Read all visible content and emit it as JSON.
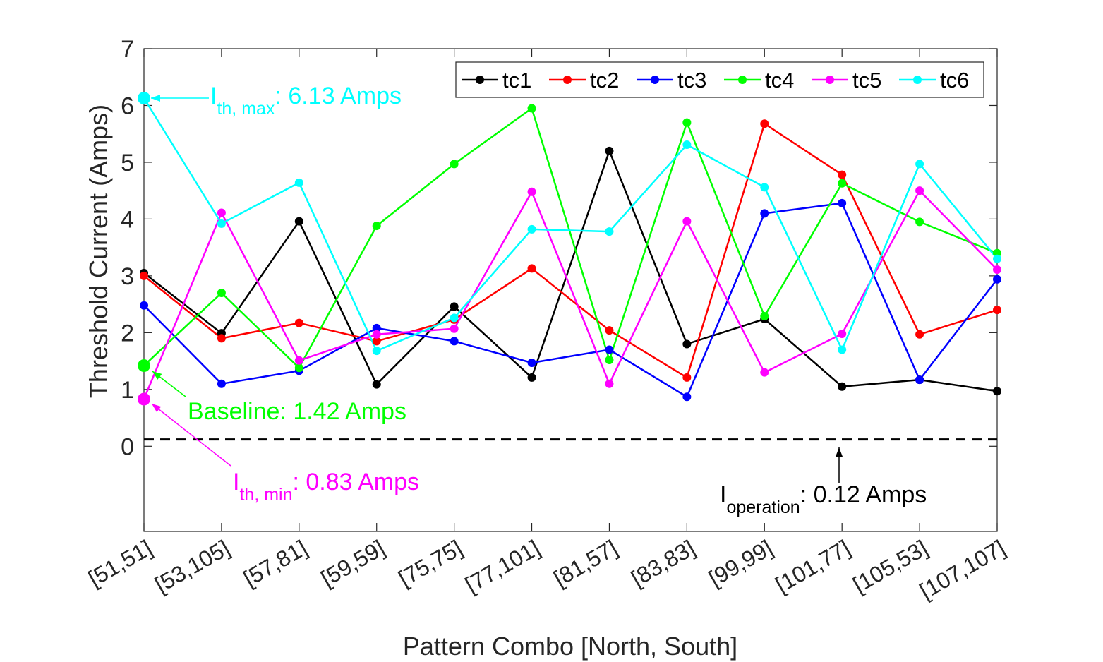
{
  "chart_data": {
    "type": "line",
    "title": "",
    "xlabel": "Pattern Combo [North, South]",
    "ylabel": "Threshold Current (Amps)",
    "categories": [
      "[51,51]",
      "[53,105]",
      "[57,81]",
      "[59,59]",
      "[75,75]",
      "[77,101]",
      "[81,57]",
      "[83,83]",
      "[99,99]",
      "[101,77]",
      "[105,53]",
      "[107,107]"
    ],
    "ylim": [
      -1.5,
      7
    ],
    "yticks": [
      0,
      1,
      2,
      3,
      4,
      5,
      6,
      7
    ],
    "grid": false,
    "legend_position": "top-right",
    "series": [
      {
        "name": "tc1",
        "color": "#000000",
        "values": [
          3.05,
          1.99,
          3.96,
          1.09,
          2.46,
          1.21,
          5.2,
          1.8,
          2.24,
          1.05,
          1.17,
          0.97
        ]
      },
      {
        "name": "tc2",
        "color": "#ff0000",
        "values": [
          3.0,
          1.9,
          2.17,
          1.85,
          2.23,
          3.13,
          2.04,
          1.21,
          5.68,
          4.78,
          1.97,
          2.4
        ]
      },
      {
        "name": "tc3",
        "color": "#0000ff",
        "values": [
          2.48,
          1.1,
          1.33,
          2.08,
          1.85,
          1.47,
          1.7,
          0.87,
          4.1,
          4.28,
          1.17,
          2.94
        ]
      },
      {
        "name": "tc4",
        "color": "#00ff00",
        "values": [
          1.42,
          2.7,
          1.38,
          3.88,
          4.97,
          5.95,
          1.52,
          5.7,
          2.29,
          4.63,
          3.95,
          3.4
        ]
      },
      {
        "name": "tc5",
        "color": "#ff00ff",
        "values": [
          0.83,
          4.11,
          1.51,
          1.97,
          2.07,
          4.48,
          1.1,
          3.96,
          1.3,
          1.98,
          4.5,
          3.11
        ]
      },
      {
        "name": "tc6",
        "color": "#00ffff",
        "values": [
          6.13,
          3.92,
          4.64,
          1.68,
          2.26,
          3.82,
          3.78,
          5.31,
          4.56,
          1.7,
          4.97,
          3.3
        ]
      }
    ],
    "reference_line": {
      "value": 0.12,
      "style": "dashed",
      "color": "#000000"
    },
    "annotations": [
      {
        "name": "ith-max",
        "main": "I",
        "sub": "th, max",
        "rest": ": 6.13 Amps",
        "color": "#00ffff",
        "category": "[51,51]",
        "value": 6.13
      },
      {
        "name": "baseline",
        "main": "Baseline: 1.42 Amps",
        "sub": "",
        "rest": "",
        "color": "#00ff00",
        "category": "[51,51]",
        "value": 1.42
      },
      {
        "name": "ith-min",
        "main": "I",
        "sub": "th, min",
        "rest": ": 0.83 Amps",
        "color": "#ff00ff",
        "category": "[51,51]",
        "value": 0.83
      },
      {
        "name": "ioperation",
        "main": "I",
        "sub": "operation",
        "rest": ": 0.12 Amps",
        "color": "#000000",
        "category": "[101,77]",
        "value": 0.12
      }
    ]
  }
}
